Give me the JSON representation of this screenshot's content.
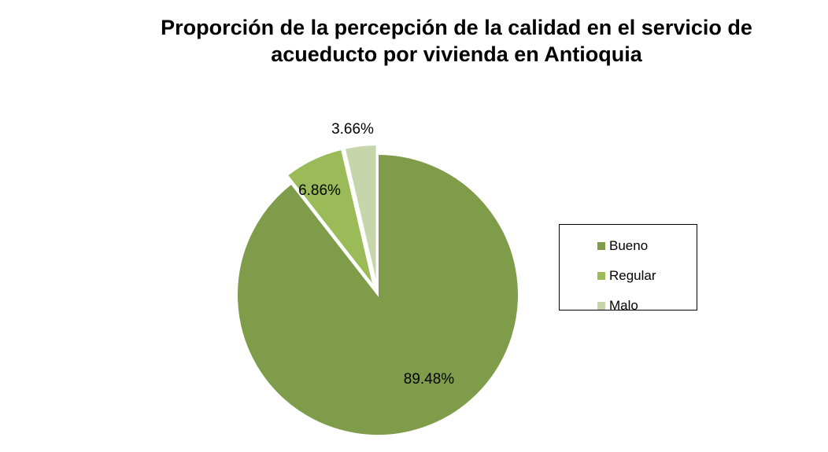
{
  "chart_data": {
    "type": "pie",
    "title_lines": [
      "Proporción de la percepción de la calidad en el servicio de",
      "acueducto por vivienda en Antioquia"
    ],
    "categories": [
      "Bueno",
      "Regular",
      "Malo"
    ],
    "values": [
      89.48,
      6.86,
      3.66
    ],
    "data_labels": [
      "89.48%",
      "6.86%",
      "3.66%"
    ],
    "colors": [
      "#7f9c4b",
      "#9bbb59",
      "#c6d6aa"
    ],
    "exploded": [
      "Regular",
      "Malo"
    ],
    "legend_position": "right"
  }
}
